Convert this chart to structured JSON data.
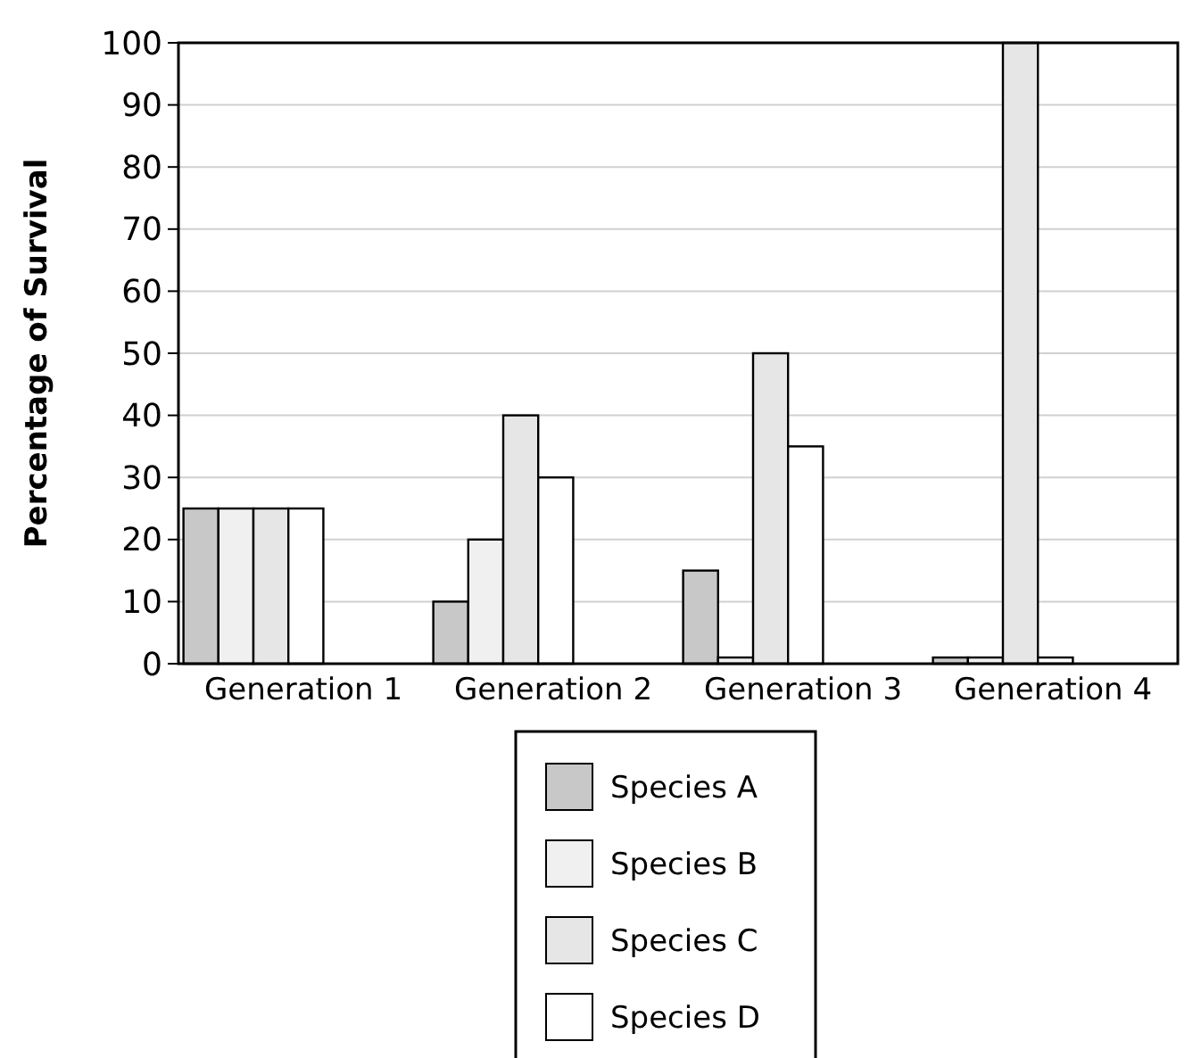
{
  "chart_data": {
    "type": "bar",
    "ylabel": "Percentage of Survival",
    "categories": [
      "Generation 1",
      "Generation 2",
      "Generation 3",
      "Generation 4"
    ],
    "series": [
      {
        "name": "Species A",
        "color": "#c8c8c8",
        "values": [
          25,
          10,
          15,
          1
        ]
      },
      {
        "name": "Species B",
        "color": "#f0f0f0",
        "values": [
          25,
          20,
          1,
          1
        ]
      },
      {
        "name": "Species C",
        "color": "#e6e6e6",
        "values": [
          25,
          40,
          50,
          100
        ]
      },
      {
        "name": "Species D",
        "color": "#ffffff",
        "values": [
          25,
          30,
          35,
          1
        ]
      }
    ],
    "ylim": [
      0,
      100
    ],
    "yticks": [
      0,
      10,
      20,
      30,
      40,
      50,
      60,
      70,
      80,
      90,
      100
    ],
    "grid": "y",
    "legend": "bottom"
  }
}
